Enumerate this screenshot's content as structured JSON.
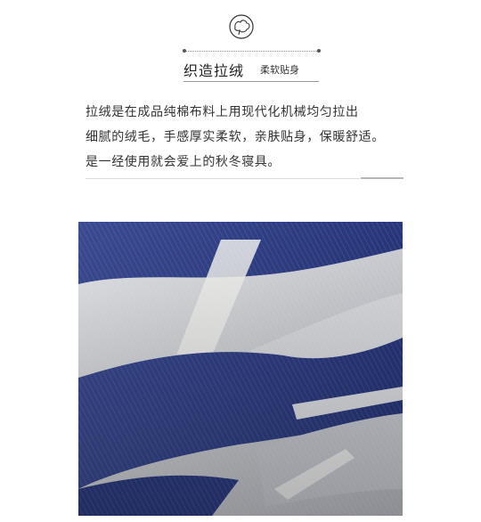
{
  "header": {
    "title": "织造拉绒",
    "subtitle": "柔软贴身"
  },
  "body_text": {
    "lines": [
      "拉绒是在成品纯棉布料上用现代化机械均匀拉出",
      "细腻的绒毛，手感厚实柔软，亲肤贴身，保暖舒适。",
      "是一经使用就会爱上的秋冬寝具。"
    ]
  },
  "icons": {
    "top": "cotton-boll-icon"
  },
  "colors": {
    "navy": "#2f3f86",
    "light_gray": "#d9dbe0",
    "white_stripe": "#f4f4f2"
  }
}
